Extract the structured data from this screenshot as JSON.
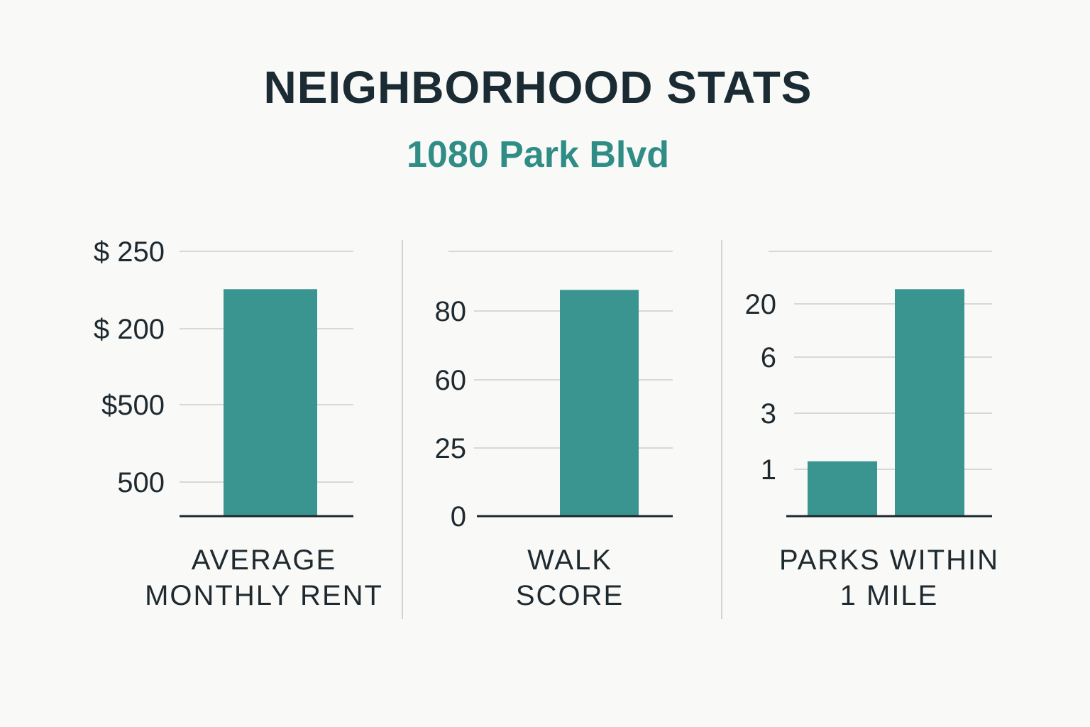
{
  "title": "NEIGHBORHOOD STATS",
  "subtitle": "1080 Park Blvd",
  "colors": {
    "bar": "#3a948f",
    "grid": "#d8d8d6",
    "axis": "#1e2a30",
    "divider": "#d3d3d1",
    "title": "#1b2b33",
    "subtitle": "#2f8d86"
  },
  "chart_data": [
    {
      "type": "bar",
      "label_lines": [
        "AVERAGE",
        "MONTHLY RENT"
      ],
      "tick_labels": [
        "500",
        "$500",
        "$ 200",
        "$ 250"
      ],
      "values": [
        2.4
      ],
      "grid": true
    },
    {
      "type": "bar",
      "label_lines": [
        "WALK",
        "SCORE"
      ],
      "tick_labels": [
        "0",
        "25",
        "60",
        "80"
      ],
      "values": [
        88
      ],
      "grid": true
    },
    {
      "type": "bar",
      "label_lines": [
        "PARKS WITHIN",
        "1 MILE"
      ],
      "tick_labels": [
        "1",
        "3",
        "6",
        "20"
      ],
      "values": [
        2.9,
        12
      ],
      "grid": true
    }
  ]
}
